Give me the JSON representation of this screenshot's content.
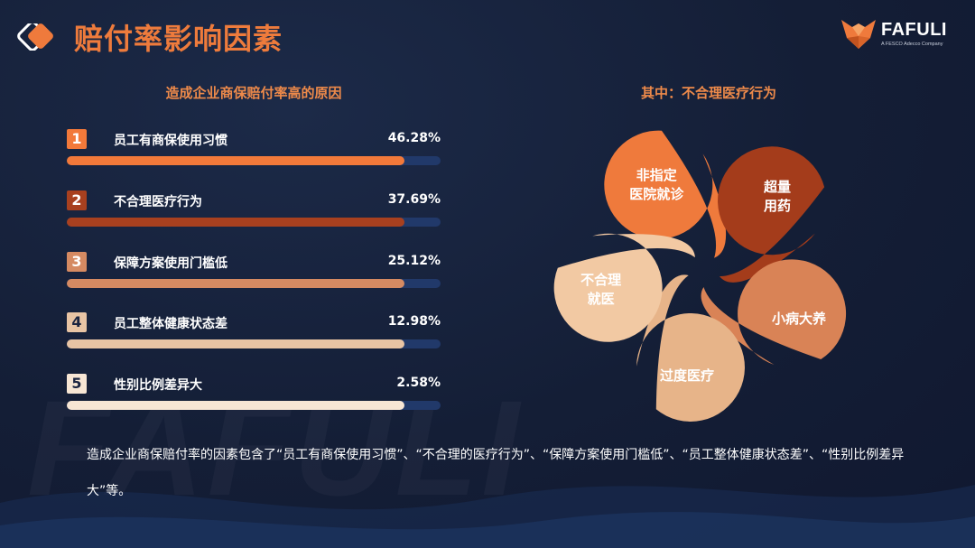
{
  "header": {
    "title": "赔付率影响因素",
    "brand_name": "FAFULI",
    "brand_sub": "A FESCO Adecco Company"
  },
  "left_panel": {
    "title": "造成企业商保赔付率高的原因",
    "rows": [
      {
        "num": "1",
        "label": "员工有商保使用习惯",
        "pct": "46.28%",
        "value": 0.9028,
        "color": "#f2793a"
      },
      {
        "num": "2",
        "label": "不合理医疗行为",
        "pct": "37.69%",
        "value": 0.9028,
        "color": "#a8401f"
      },
      {
        "num": "3",
        "label": "保障方案使用门槛低",
        "pct": "25.12%",
        "value": 0.9028,
        "color": "#d58a62"
      },
      {
        "num": "4",
        "label": "员工整体健康状态差",
        "pct": "12.98%",
        "value": 0.9028,
        "color": "#e8c4a4"
      },
      {
        "num": "5",
        "label": "性别比例差异大",
        "pct": "2.58%",
        "value": 0.9028,
        "color": "#f7e6d4"
      }
    ]
  },
  "right_panel": {
    "title": "其中：不合理医疗行为",
    "petals": [
      {
        "text": "非指定\n医院就诊",
        "color": "#ef7a3c"
      },
      {
        "text": "超量\n用药",
        "color": "#a43c1b"
      },
      {
        "text": "小病大养",
        "color": "#d98356"
      },
      {
        "text": "过度医疗",
        "color": "#e7b489"
      },
      {
        "text": "不合理\n就医",
        "color": "#f2c9a3"
      }
    ]
  },
  "summary": "造成企业商保赔付率的因素包含了“员工有商保使用习惯”、“不合理的医疗行为”、“保障方案使用门槛低”、“员工整体健康状态差”、“性别比例差异大”等。",
  "watermark": "FAFULI"
}
